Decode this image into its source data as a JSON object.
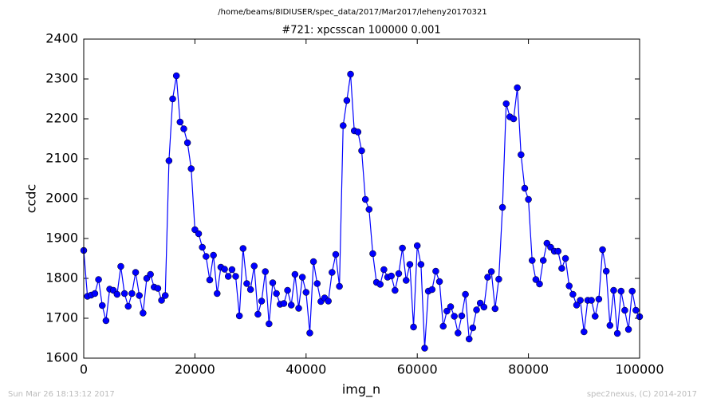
{
  "chart_data": {
    "type": "line",
    "suptitle": "/home/beams/8IDIUSER/spec_data/2017/Mar2017/leheny20170321",
    "title": "#721: xpcsscan 100000 0.001",
    "xlabel": "img_n",
    "ylabel": "ccdc",
    "footer_left": "Sun Mar 26 18:13:12 2017",
    "footer_right": "spec2nexus, (C) 2014-2017",
    "xlim": [
      0,
      100000
    ],
    "ylim": [
      1600,
      2400
    ],
    "xticks": [
      0,
      20000,
      40000,
      60000,
      80000,
      100000
    ],
    "yticks": [
      1600,
      1700,
      1800,
      1900,
      2000,
      2100,
      2200,
      2300,
      2400
    ],
    "x": [
      0,
      667,
      1333,
      2000,
      2667,
      3333,
      4000,
      4667,
      5333,
      6000,
      6667,
      7333,
      8000,
      8667,
      9333,
      10000,
      10667,
      11333,
      12000,
      12667,
      13333,
      14000,
      14667,
      15333,
      16000,
      16667,
      17333,
      18000,
      18667,
      19333,
      20000,
      20667,
      21333,
      22000,
      22667,
      23333,
      24000,
      24667,
      25333,
      26000,
      26667,
      27333,
      28000,
      28667,
      29333,
      30000,
      30667,
      31333,
      32000,
      32667,
      33333,
      34000,
      34667,
      35333,
      36000,
      36667,
      37333,
      38000,
      38667,
      39333,
      40000,
      40667,
      41333,
      42000,
      42667,
      43333,
      44000,
      44667,
      45333,
      46000,
      46667,
      47333,
      48000,
      48667,
      49333,
      50000,
      50667,
      51333,
      52000,
      52667,
      53333,
      54000,
      54667,
      55333,
      56000,
      56667,
      57333,
      58000,
      58667,
      59333,
      60000,
      60667,
      61333,
      62000,
      62667,
      63333,
      64000,
      64667,
      65333,
      66000,
      66667,
      67333,
      68000,
      68667,
      69333,
      70000,
      70667,
      71333,
      72000,
      72667,
      73333,
      74000,
      74667,
      75333,
      76000,
      76667,
      77333,
      78000,
      78667,
      79333,
      80000,
      80667,
      81333,
      82000,
      82667,
      83333,
      84000,
      84667,
      85333,
      86000,
      86667,
      87333,
      88000,
      88667,
      89333,
      90000,
      90667,
      91333,
      92000,
      92667,
      93333,
      94000,
      94667,
      95333,
      96000,
      96667,
      97333,
      98000,
      98667,
      99333,
      100000
    ],
    "series": [
      {
        "name": "ccdc",
        "color": "#0000ff",
        "values": [
          1870,
          1755,
          1758,
          1762,
          1797,
          1732,
          1694,
          1773,
          1770,
          1760,
          1830,
          1762,
          1730,
          1762,
          1815,
          1757,
          1713,
          1800,
          1810,
          1778,
          1775,
          1745,
          1757,
          2095,
          2250,
          2308,
          2192,
          2175,
          2140,
          2075,
          1922,
          1912,
          1878,
          1855,
          1796,
          1858,
          1762,
          1828,
          1823,
          1805,
          1822,
          1805,
          1706,
          1875,
          1787,
          1772,
          1831,
          1710,
          1743,
          1817,
          1686,
          1789,
          1762,
          1735,
          1737,
          1770,
          1733,
          1810,
          1725,
          1803,
          1765,
          1663,
          1842,
          1787,
          1742,
          1751,
          1743,
          1815,
          1860,
          1780,
          2183,
          2246,
          2312,
          2170,
          2167,
          2120,
          1998,
          1973,
          1862,
          1790,
          1785,
          1822,
          1803,
          1806,
          1770,
          1812,
          1876,
          1795,
          1835,
          1678,
          1882,
          1835,
          1625,
          1768,
          1772,
          1818,
          1792,
          1680,
          1718,
          1729,
          1705,
          1663,
          1706,
          1760,
          1648,
          1676,
          1721,
          1738,
          1728,
          1803,
          1817,
          1724,
          1798,
          1978,
          2238,
          2205,
          2200,
          2278,
          2110,
          2026,
          1998,
          1845,
          1797,
          1786,
          1845,
          1888,
          1878,
          1868,
          1868,
          1825,
          1850,
          1781,
          1760,
          1733,
          1745,
          1666,
          1745,
          1745,
          1705,
          1748,
          1872,
          1818,
          1682,
          1770,
          1662,
          1768,
          1720,
          1672,
          1768,
          1720,
          1704
        ]
      }
    ]
  }
}
